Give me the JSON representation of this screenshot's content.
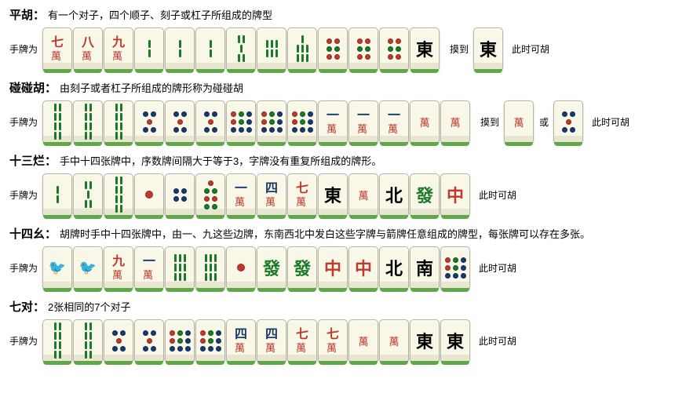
{
  "labels": {
    "hand": "手牌为",
    "draw": "摸到",
    "or": "或",
    "canwin": "此时可胡"
  },
  "sections": [
    {
      "title": "平胡：",
      "desc": "有一个对子，四个顺子、刻子或杠子所组成的牌型",
      "hand": [
        "w7",
        "w8",
        "w9",
        "b2",
        "b2",
        "b2",
        "b5",
        "b6",
        "b7",
        "d6",
        "d6",
        "d6",
        "east"
      ],
      "extra": [
        {
          "type": "draw",
          "tiles": [
            "east"
          ]
        },
        {
          "type": "canwin"
        }
      ]
    },
    {
      "title": "碰碰胡：",
      "desc": "由刻子或者杠子所组成的牌形称为碰碰胡",
      "hand": [
        "b8",
        "b8",
        "b8",
        "d5",
        "d5",
        "d5",
        "d9",
        "d9",
        "d9",
        "w1",
        "w1",
        "w1",
        "white",
        "white"
      ],
      "extra": [
        {
          "type": "draw",
          "tiles": [
            "white"
          ]
        },
        {
          "type": "or"
        },
        {
          "type": "tiles",
          "tiles": [
            "d5"
          ]
        },
        {
          "type": "canwin"
        }
      ]
    },
    {
      "title": "十三烂：",
      "desc": "手中十四张牌中，序数牌间隔大于等于3，字牌没有重复所组成的牌形。",
      "hand": [
        "b2",
        "b5",
        "b8",
        "d1",
        "d4",
        "d7",
        "w1",
        "w4",
        "w7",
        "east",
        "west",
        "north",
        "green",
        "red"
      ],
      "extra": [
        {
          "type": "canwin"
        }
      ]
    },
    {
      "title": "十四幺：",
      "desc": "胡牌时手中十四张牌中，由一、九这些边牌，东南西北中发白这些字牌与箭牌任意组成的牌型，每张牌可以存在多张。",
      "hand": [
        "b1",
        "b1",
        "w9",
        "w1",
        "b9",
        "b9",
        "d1",
        "green",
        "green",
        "red",
        "red",
        "north",
        "south",
        "d9"
      ],
      "extra": [
        {
          "type": "canwin"
        }
      ]
    },
    {
      "title": "七对：",
      "desc": "2张相同的7个对子",
      "hand": [
        "b8",
        "b8",
        "d5",
        "d5",
        "d9",
        "d9",
        "w4",
        "w4",
        "w7",
        "w7",
        "white",
        "white",
        "east",
        "east"
      ],
      "extra": [
        {
          "type": "canwin"
        }
      ]
    }
  ],
  "colors": {
    "tile_face": "#f9f8e8",
    "tile_base": "#5fa848",
    "red": "#c0392b",
    "green": "#1b7a2a",
    "blue": "#1a3a6a"
  }
}
